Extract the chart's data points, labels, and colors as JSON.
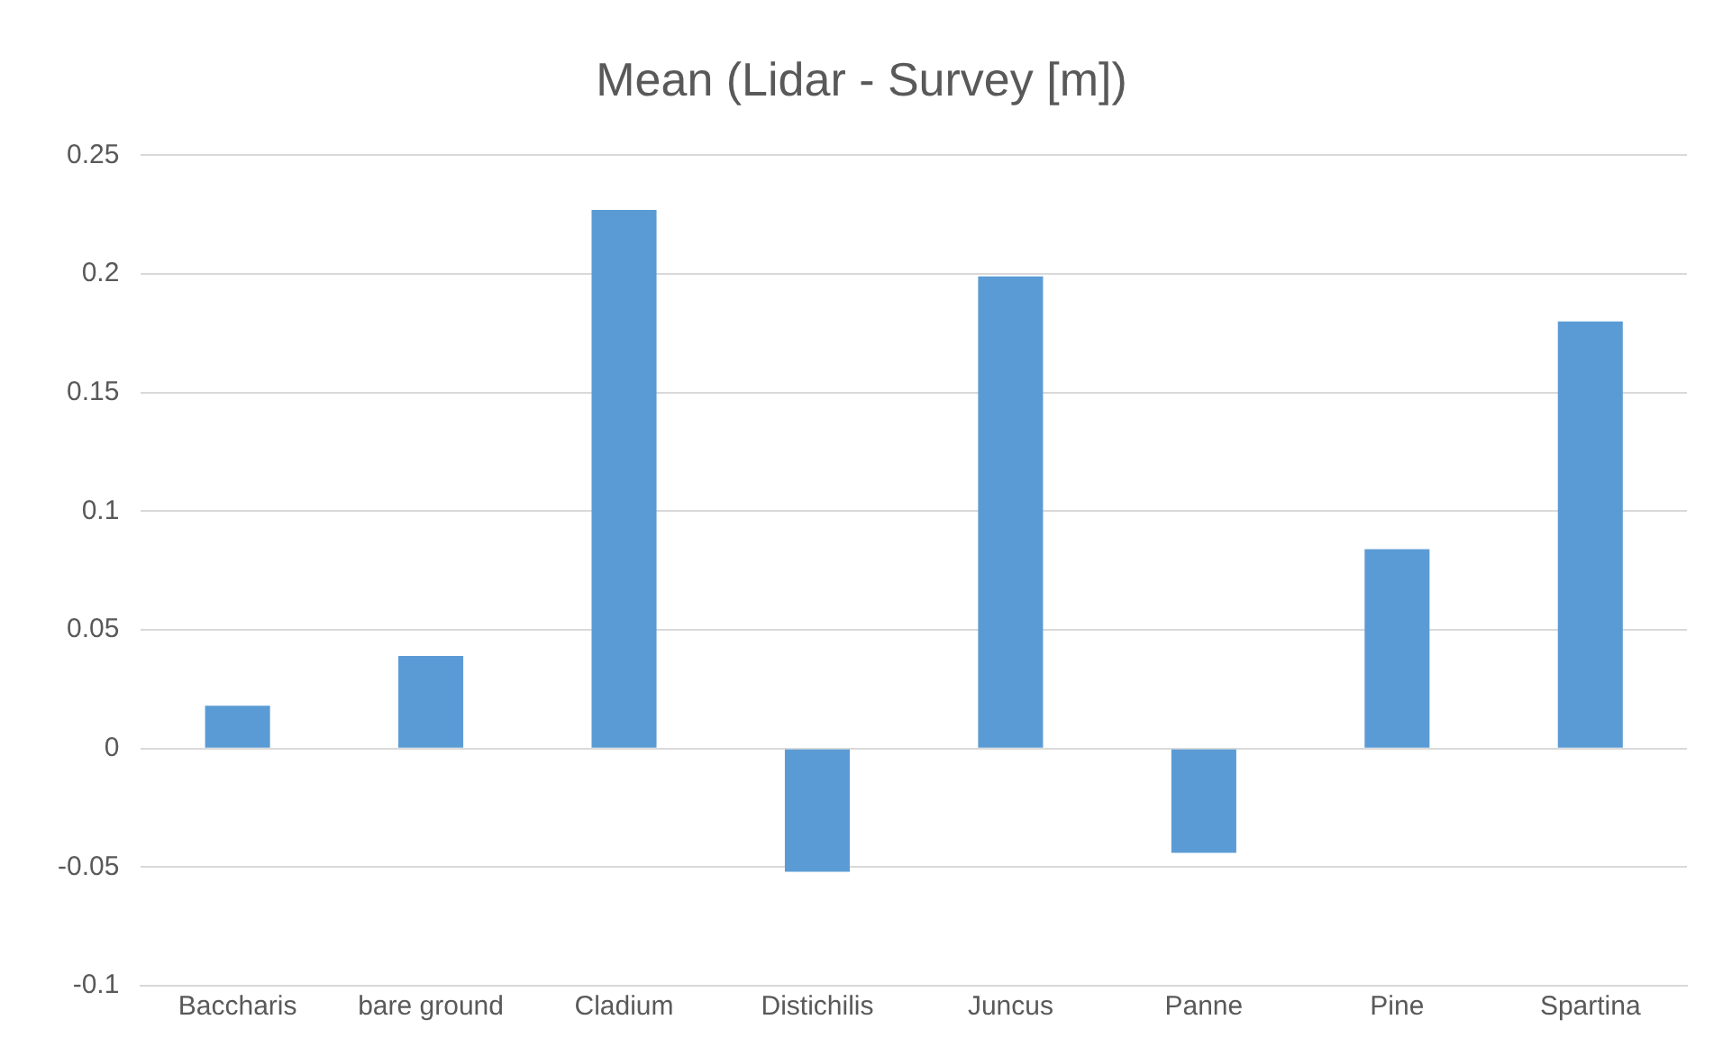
{
  "chart_data": {
    "type": "bar",
    "title": "Mean (Lidar - Survey [m])",
    "categories": [
      "Baccharis",
      "bare ground",
      "Cladium",
      "Distichilis",
      "Juncus",
      "Panne",
      "Pine",
      "Spartina"
    ],
    "values": [
      0.018,
      0.039,
      0.227,
      -0.052,
      0.199,
      -0.044,
      0.084,
      0.18
    ],
    "color": "#5b9bd5",
    "ylim": [
      -0.1,
      0.25
    ],
    "yticks": [
      -0.1,
      -0.05,
      0,
      0.05,
      0.1,
      0.15,
      0.2,
      0.25
    ],
    "grid": "y",
    "legend": false
  }
}
